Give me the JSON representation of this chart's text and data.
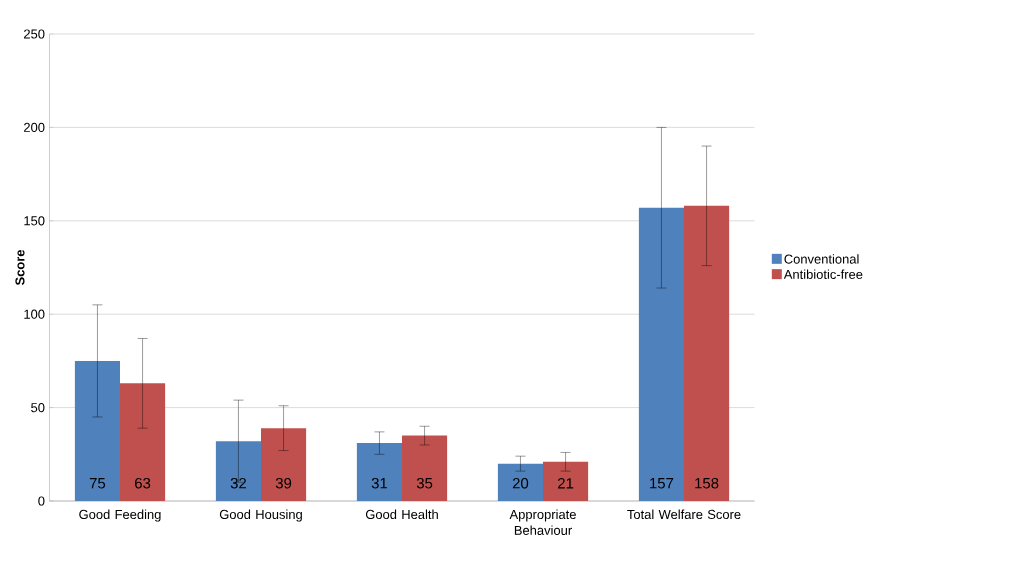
{
  "chart_data": {
    "type": "bar",
    "ylabel": "Score",
    "categories": [
      "Good Feeding",
      "Good Housing",
      "Good Health",
      "Appropriate Behaviour",
      "Total Welfare Score"
    ],
    "series": [
      {
        "name": "Conventional",
        "color": "#4f81bd",
        "values": [
          75,
          32,
          31,
          20,
          157
        ],
        "errors": [
          30,
          22,
          6,
          4,
          43
        ]
      },
      {
        "name": "Antibiotic-free",
        "color": "#c0504d",
        "values": [
          63,
          39,
          35,
          21,
          158
        ],
        "errors": [
          24,
          12,
          5,
          5,
          32
        ]
      }
    ],
    "ylim": [
      0,
      250
    ],
    "yticks": [
      0,
      50,
      100,
      150,
      200,
      250
    ],
    "grid": "y",
    "legend": "right",
    "data_labels": true
  }
}
